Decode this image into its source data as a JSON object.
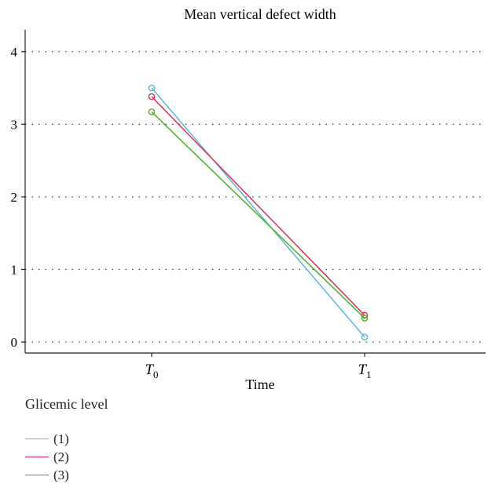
{
  "chart_data": {
    "type": "line",
    "title": "Mean vertical defect width",
    "xlabel": "Time",
    "ylabel": "",
    "categories": [
      {
        "base": "T",
        "sub": "0"
      },
      {
        "base": "T",
        "sub": "1"
      }
    ],
    "ylim": [
      -0.15,
      4.3
    ],
    "yticks": [
      "0",
      "1",
      "2",
      "3",
      "4"
    ],
    "grid": "horizontal dotted",
    "legend": {
      "title": "Glicemic level",
      "placement": "bottom-left"
    },
    "series": [
      {
        "name": "(1)",
        "color": "#5bb8d4",
        "values": [
          3.5,
          0.07
        ]
      },
      {
        "name": "(2)",
        "color": "#d8315b",
        "values": [
          3.38,
          0.37
        ]
      },
      {
        "name": "(3)",
        "color": "#4caf1e",
        "values": [
          3.17,
          0.33
        ]
      }
    ]
  }
}
